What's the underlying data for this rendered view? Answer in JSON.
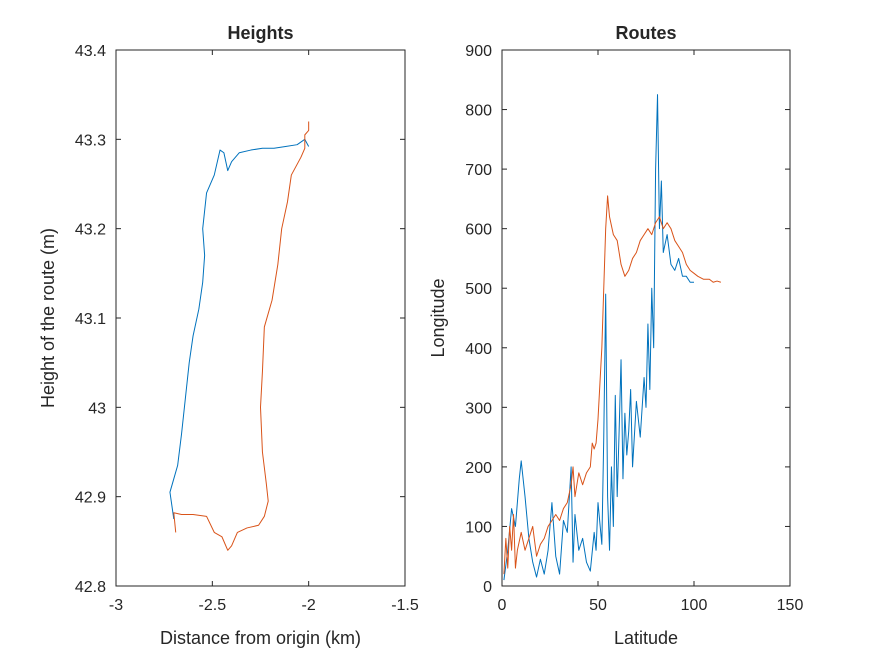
{
  "chart_data": [
    {
      "type": "line",
      "title": "Heights",
      "xlabel": "Distance from origin (km)",
      "ylabel": "Height of the route (m)",
      "xlim": [
        -3,
        -1.5
      ],
      "ylim": [
        42.8,
        43.4
      ],
      "xticks": [
        -3,
        -2.5,
        -2,
        -1.5
      ],
      "xtick_labels": [
        "-3",
        "-2.5",
        "-2",
        "-1.5"
      ],
      "yticks": [
        42.8,
        42.9,
        43,
        43.1,
        43.2,
        43.3,
        43.4
      ],
      "ytick_labels": [
        "42.8",
        "42.9",
        "43",
        "43.1",
        "43.2",
        "43.3",
        "43.4"
      ],
      "grid": false,
      "series": [
        {
          "color": "#0072BD",
          "points": [
            [
              -2.7,
              42.875
            ],
            [
              -2.72,
              42.905
            ],
            [
              -2.7,
              42.92
            ],
            [
              -2.68,
              42.935
            ],
            [
              -2.66,
              42.97
            ],
            [
              -2.64,
              43.01
            ],
            [
              -2.62,
              43.05
            ],
            [
              -2.6,
              43.08
            ],
            [
              -2.57,
              43.11
            ],
            [
              -2.55,
              43.14
            ],
            [
              -2.54,
              43.17
            ],
            [
              -2.55,
              43.2
            ],
            [
              -2.53,
              43.24
            ],
            [
              -2.49,
              43.26
            ],
            [
              -2.46,
              43.288
            ],
            [
              -2.44,
              43.285
            ],
            [
              -2.42,
              43.265
            ],
            [
              -2.4,
              43.275
            ],
            [
              -2.36,
              43.285
            ],
            [
              -2.3,
              43.288
            ],
            [
              -2.24,
              43.29
            ],
            [
              -2.18,
              43.29
            ],
            [
              -2.12,
              43.292
            ],
            [
              -2.06,
              43.294
            ],
            [
              -2.02,
              43.3
            ],
            [
              -2.0,
              43.292
            ]
          ]
        },
        {
          "color": "#D95319",
          "points": [
            [
              -2.69,
              42.86
            ],
            [
              -2.7,
              42.882
            ],
            [
              -2.66,
              42.88
            ],
            [
              -2.6,
              42.88
            ],
            [
              -2.53,
              42.878
            ],
            [
              -2.49,
              42.86
            ],
            [
              -2.45,
              42.855
            ],
            [
              -2.42,
              42.84
            ],
            [
              -2.4,
              42.845
            ],
            [
              -2.37,
              42.86
            ],
            [
              -2.32,
              42.865
            ],
            [
              -2.26,
              42.868
            ],
            [
              -2.23,
              42.878
            ],
            [
              -2.21,
              42.895
            ],
            [
              -2.22,
              42.915
            ],
            [
              -2.24,
              42.95
            ],
            [
              -2.25,
              43.0
            ],
            [
              -2.24,
              43.04
            ],
            [
              -2.23,
              43.09
            ],
            [
              -2.19,
              43.12
            ],
            [
              -2.16,
              43.16
            ],
            [
              -2.14,
              43.2
            ],
            [
              -2.11,
              43.23
            ],
            [
              -2.09,
              43.26
            ],
            [
              -2.04,
              43.28
            ],
            [
              -2.02,
              43.29
            ],
            [
              -2.02,
              43.305
            ],
            [
              -2.0,
              43.31
            ],
            [
              -2.0,
              43.32
            ]
          ]
        }
      ]
    },
    {
      "type": "line",
      "title": "Routes",
      "xlabel": "Latitude",
      "ylabel": "Longitude",
      "xlim": [
        0,
        150
      ],
      "ylim": [
        0,
        900
      ],
      "xticks": [
        0,
        50,
        100,
        150
      ],
      "xtick_labels": [
        "0",
        "50",
        "100",
        "150"
      ],
      "yticks": [
        0,
        100,
        200,
        300,
        400,
        500,
        600,
        700,
        800,
        900
      ],
      "ytick_labels": [
        "0",
        "100",
        "200",
        "300",
        "400",
        "500",
        "600",
        "700",
        "800",
        "900"
      ],
      "grid": false,
      "series": [
        {
          "color": "#0072BD",
          "points": [
            [
              1,
              10
            ],
            [
              3,
              60
            ],
            [
              5,
              130
            ],
            [
              7,
              100
            ],
            [
              9,
              180
            ],
            [
              10,
              210
            ],
            [
              12,
              150
            ],
            [
              14,
              80
            ],
            [
              16,
              40
            ],
            [
              18,
              15
            ],
            [
              20,
              45
            ],
            [
              22,
              20
            ],
            [
              24,
              60
            ],
            [
              26,
              140
            ],
            [
              28,
              50
            ],
            [
              30,
              20
            ],
            [
              32,
              110
            ],
            [
              34,
              90
            ],
            [
              36,
              200
            ],
            [
              37,
              40
            ],
            [
              38,
              120
            ],
            [
              40,
              60
            ],
            [
              42,
              80
            ],
            [
              44,
              40
            ],
            [
              46,
              25
            ],
            [
              48,
              90
            ],
            [
              49,
              60
            ],
            [
              50,
              140
            ],
            [
              52,
              70
            ],
            [
              53,
              250
            ],
            [
              54,
              490
            ],
            [
              55,
              150
            ],
            [
              56,
              60
            ],
            [
              57,
              200
            ],
            [
              58,
              100
            ],
            [
              59,
              320
            ],
            [
              60,
              150
            ],
            [
              61,
              260
            ],
            [
              62,
              380
            ],
            [
              63,
              180
            ],
            [
              64,
              290
            ],
            [
              65,
              220
            ],
            [
              66,
              260
            ],
            [
              67,
              330
            ],
            [
              68,
              200
            ],
            [
              70,
              310
            ],
            [
              72,
              250
            ],
            [
              74,
              350
            ],
            [
              75,
              300
            ],
            [
              76,
              440
            ],
            [
              77,
              330
            ],
            [
              78,
              500
            ],
            [
              79,
              400
            ],
            [
              80,
              700
            ],
            [
              81,
              825
            ],
            [
              82,
              600
            ],
            [
              83,
              680
            ],
            [
              84,
              560
            ],
            [
              86,
              590
            ],
            [
              88,
              540
            ],
            [
              90,
              530
            ],
            [
              92,
              550
            ],
            [
              94,
              520
            ],
            [
              96,
              520
            ],
            [
              98,
              510
            ],
            [
              100,
              510
            ]
          ]
        },
        {
          "color": "#D95319",
          "points": [
            [
              1,
              20
            ],
            [
              2,
              80
            ],
            [
              3,
              30
            ],
            [
              4,
              100
            ],
            [
              5,
              60
            ],
            [
              6,
              120
            ],
            [
              7,
              30
            ],
            [
              8,
              60
            ],
            [
              10,
              90
            ],
            [
              12,
              60
            ],
            [
              14,
              80
            ],
            [
              16,
              100
            ],
            [
              18,
              50
            ],
            [
              20,
              70
            ],
            [
              22,
              80
            ],
            [
              24,
              100
            ],
            [
              26,
              110
            ],
            [
              28,
              120
            ],
            [
              30,
              110
            ],
            [
              32,
              130
            ],
            [
              34,
              140
            ],
            [
              36,
              170
            ],
            [
              37,
              200
            ],
            [
              38,
              150
            ],
            [
              40,
              190
            ],
            [
              42,
              170
            ],
            [
              44,
              190
            ],
            [
              46,
              200
            ],
            [
              47,
              240
            ],
            [
              48,
              230
            ],
            [
              49,
              240
            ],
            [
              50,
              280
            ],
            [
              52,
              400
            ],
            [
              53,
              500
            ],
            [
              54,
              600
            ],
            [
              55,
              655
            ],
            [
              56,
              620
            ],
            [
              58,
              590
            ],
            [
              60,
              580
            ],
            [
              62,
              540
            ],
            [
              64,
              520
            ],
            [
              66,
              530
            ],
            [
              68,
              550
            ],
            [
              70,
              560
            ],
            [
              72,
              580
            ],
            [
              74,
              590
            ],
            [
              76,
              600
            ],
            [
              78,
              590
            ],
            [
              80,
              610
            ],
            [
              82,
              620
            ],
            [
              84,
              600
            ],
            [
              86,
              610
            ],
            [
              88,
              600
            ],
            [
              90,
              580
            ],
            [
              92,
              570
            ],
            [
              94,
              560
            ],
            [
              96,
              540
            ],
            [
              98,
              530
            ],
            [
              100,
              525
            ],
            [
              102,
              520
            ],
            [
              105,
              515
            ],
            [
              108,
              515
            ],
            [
              110,
              510
            ],
            [
              112,
              512
            ],
            [
              114,
              510
            ]
          ]
        }
      ]
    }
  ]
}
